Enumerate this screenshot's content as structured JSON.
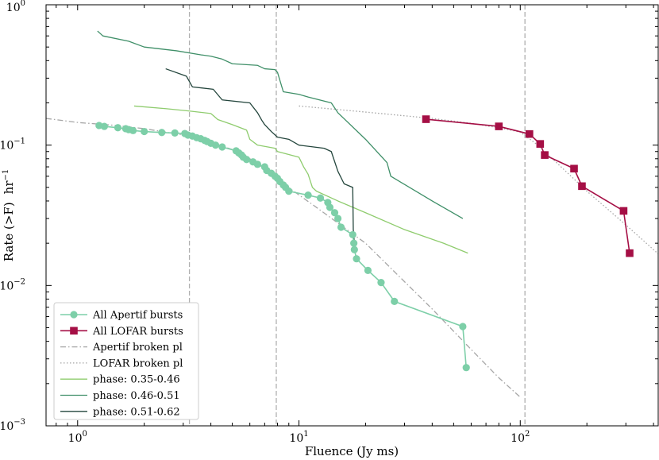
{
  "chart_data": {
    "type": "line",
    "title": "",
    "xlabel": "Fluence (Jy ms)",
    "ylabel_main": "Rate (>F)",
    "ylabel_unit_base": "hr",
    "ylabel_unit_exp": "−1",
    "xscale": "log",
    "yscale": "log",
    "xlim": [
      0.72,
      420
    ],
    "ylim": [
      0.001,
      1.0
    ],
    "x_ticks": [
      {
        "value": 1,
        "base": "10",
        "exp": "0"
      },
      {
        "value": 10,
        "base": "10",
        "exp": "1"
      },
      {
        "value": 100,
        "base": "10",
        "exp": "2"
      }
    ],
    "y_ticks": [
      {
        "value": 0.001,
        "base": "10",
        "exp": "−3"
      },
      {
        "value": 0.01,
        "base": "10",
        "exp": "−2"
      },
      {
        "value": 0.1,
        "base": "10",
        "exp": "−1"
      },
      {
        "value": 1,
        "base": "10",
        "exp": "0"
      }
    ],
    "vertical_lines": [
      3.2,
      7.9,
      105
    ],
    "legend_position": "lower-left",
    "series": [
      {
        "name": "All Apertif bursts",
        "style": "line-marker-circle",
        "color": "#7dcfa8",
        "x": [
          1.25,
          1.32,
          1.52,
          1.65,
          1.7,
          1.78,
          2.0,
          2.4,
          2.75,
          3.05,
          3.15,
          3.3,
          3.45,
          3.6,
          3.75,
          3.85,
          4.0,
          4.2,
          4.5,
          5.2,
          5.35,
          5.5,
          5.6,
          5.8,
          6.2,
          6.5,
          7.0,
          7.15,
          7.5,
          7.8,
          8.0,
          8.2,
          8.5,
          8.7,
          9.0,
          11.0,
          12.5,
          13.5,
          13.8,
          14.5,
          15.0,
          15.5,
          17.5,
          17.7,
          17.8,
          18.2,
          20.5,
          23.5,
          27.0,
          55.0,
          57.0
        ],
        "y": [
          0.138,
          0.136,
          0.133,
          0.131,
          0.129,
          0.127,
          0.125,
          0.123,
          0.122,
          0.121,
          0.118,
          0.116,
          0.113,
          0.111,
          0.108,
          0.106,
          0.103,
          0.1,
          0.097,
          0.091,
          0.088,
          0.085,
          0.082,
          0.079,
          0.076,
          0.073,
          0.07,
          0.066,
          0.063,
          0.06,
          0.058,
          0.055,
          0.052,
          0.05,
          0.047,
          0.044,
          0.042,
          0.039,
          0.036,
          0.033,
          0.03,
          0.026,
          0.023,
          0.02,
          0.018,
          0.0155,
          0.0128,
          0.0105,
          0.0077,
          0.0051,
          0.0026
        ]
      },
      {
        "name": "All LOFAR bursts",
        "style": "line-marker-square",
        "color": "#a50f45",
        "x": [
          37.5,
          80.0,
          110.0,
          123.0,
          129.0,
          175.0,
          190.0,
          293.0,
          312.0
        ],
        "y": [
          0.153,
          0.136,
          0.12,
          0.102,
          0.085,
          0.068,
          0.051,
          0.034,
          0.017
        ]
      },
      {
        "name": "Apertif broken pl",
        "style": "dashdot",
        "color": "#a6a6a6",
        "x": [
          0.72,
          1.0,
          1.5,
          2.0,
          3.0,
          4.0,
          5.0,
          6.0,
          7.0,
          8.0,
          8.5,
          12.0,
          20.0,
          40.0,
          60.0,
          80.0,
          100.0
        ],
        "y": [
          0.155,
          0.145,
          0.138,
          0.131,
          0.118,
          0.105,
          0.093,
          0.08,
          0.068,
          0.057,
          0.053,
          0.036,
          0.02,
          0.0068,
          0.0035,
          0.0022,
          0.0016
        ]
      },
      {
        "name": "LOFAR broken pl",
        "style": "dotted",
        "color": "#a6a6a6",
        "x": [
          10.0,
          20.0,
          40.0,
          60.0,
          80.0,
          100.0,
          120.0,
          150.0,
          200.0,
          300.0,
          420.0
        ],
        "y": [
          0.19,
          0.172,
          0.155,
          0.143,
          0.133,
          0.124,
          0.1,
          0.072,
          0.047,
          0.027,
          0.0168
        ]
      },
      {
        "name": "phase: 0.35-0.46",
        "style": "line",
        "color": "#8fcc6e",
        "x": [
          1.8,
          2.5,
          3.2,
          4.0,
          4.3,
          5.0,
          5.8,
          6.0,
          6.5,
          7.8,
          8.0,
          10.0,
          10.5,
          11.0,
          11.5,
          12.0,
          15.0,
          20.0,
          30.0,
          45.0,
          58.0
        ],
        "y": [
          0.19,
          0.182,
          0.175,
          0.168,
          0.152,
          0.14,
          0.128,
          0.11,
          0.1,
          0.095,
          0.09,
          0.082,
          0.07,
          0.062,
          0.05,
          0.047,
          0.04,
          0.033,
          0.025,
          0.02,
          0.017
        ]
      },
      {
        "name": "phase: 0.46-0.51",
        "style": "line",
        "color": "#3f8f68",
        "x": [
          1.23,
          1.3,
          1.7,
          2.0,
          2.8,
          3.6,
          4.0,
          4.5,
          5.0,
          6.5,
          7.0,
          7.8,
          8.0,
          8.5,
          10.0,
          11.0,
          14.0,
          15.0,
          20.0,
          25.0,
          26.0,
          40.0,
          55.0
        ],
        "y": [
          0.65,
          0.6,
          0.55,
          0.5,
          0.47,
          0.44,
          0.43,
          0.41,
          0.38,
          0.37,
          0.35,
          0.345,
          0.33,
          0.24,
          0.23,
          0.22,
          0.2,
          0.17,
          0.11,
          0.075,
          0.06,
          0.04,
          0.03
        ]
      },
      {
        "name": "phase: 0.51-0.62",
        "style": "line",
        "color": "#23453c",
        "x": [
          2.5,
          3.1,
          3.3,
          4.1,
          4.5,
          6.0,
          6.5,
          6.8,
          7.0,
          7.5,
          8.0,
          9.0,
          10.0,
          13.0,
          14.0,
          15.0,
          16.0,
          17.5,
          17.6,
          17.8
        ],
        "y": [
          0.35,
          0.31,
          0.26,
          0.25,
          0.21,
          0.2,
          0.17,
          0.15,
          0.14,
          0.125,
          0.114,
          0.11,
          0.1,
          0.095,
          0.09,
          0.065,
          0.053,
          0.05,
          0.025,
          0.02
        ]
      }
    ]
  }
}
